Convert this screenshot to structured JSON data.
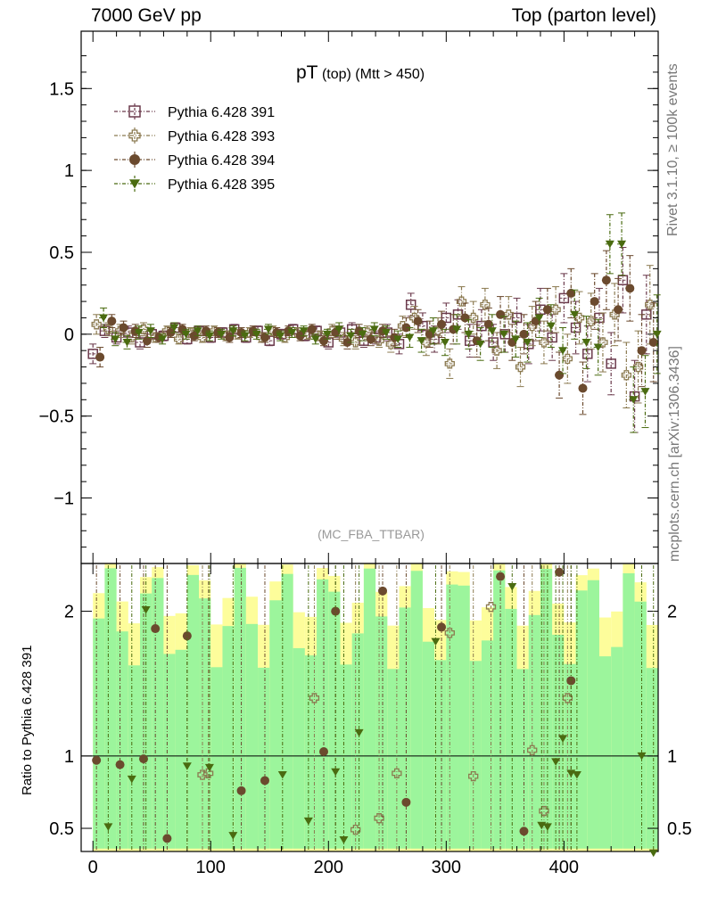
{
  "header": {
    "left": "7000 GeV pp",
    "right": "Top (parton level)"
  },
  "side_labels": {
    "rivet": "Rivet 3.1.10, ≥ 100k events",
    "mcplots": "mcplots.cern.ch [arXiv:1306.3436]"
  },
  "chart_data": [
    {
      "type": "scatter",
      "title_main": "pT",
      "title_small": "(top) (Mtt > 450)",
      "watermark": "(MC_FBA_TTBAR)",
      "xlabel": "",
      "ylabel": "",
      "xlim": [
        -10,
        480
      ],
      "ylim": [
        -1.4,
        1.85
      ],
      "yticks": [
        -1,
        -0.5,
        0,
        0.5,
        1,
        1.5
      ],
      "ytick_labels": [
        "−1",
        "−0.5",
        "0",
        "0.5",
        "1",
        "1.5"
      ],
      "legend_position": "top-left",
      "series": [
        {
          "name": "Pythia 6.428 391",
          "color": "#6b3a4c",
          "marker": "open-square",
          "x": [
            0,
            10,
            20,
            30,
            40,
            50,
            60,
            70,
            80,
            90,
            100,
            110,
            120,
            130,
            140,
            150,
            160,
            170,
            180,
            190,
            200,
            210,
            220,
            230,
            240,
            250,
            260,
            270,
            280,
            290,
            300,
            310,
            320,
            330,
            340,
            350,
            360,
            370,
            380,
            390,
            400,
            410,
            420,
            430,
            440,
            450,
            460,
            470
          ],
          "y": [
            -0.12,
            0.02,
            -0.02,
            0.01,
            -0.05,
            0.0,
            -0.01,
            0.04,
            -0.03,
            0.02,
            -0.02,
            0.01,
            0.03,
            -0.02,
            0.02,
            -0.04,
            0.0,
            0.03,
            -0.01,
            0.02,
            -0.05,
            0.01,
            0.03,
            -0.04,
            -0.02,
            0.01,
            -0.06,
            0.18,
            0.05,
            -0.03,
            0.1,
            0.12,
            -0.04,
            0.05,
            -0.05,
            0.0,
            0.1,
            -0.06,
            0.15,
            -0.02,
            0.22,
            0.04,
            -0.12,
            0.1,
            -0.18,
            0.33,
            -0.38,
            0.12
          ],
          "err": [
            0.06,
            0.04,
            0.04,
            0.04,
            0.04,
            0.03,
            0.03,
            0.03,
            0.03,
            0.03,
            0.03,
            0.03,
            0.03,
            0.03,
            0.03,
            0.03,
            0.03,
            0.03,
            0.03,
            0.03,
            0.04,
            0.04,
            0.04,
            0.04,
            0.04,
            0.05,
            0.06,
            0.07,
            0.08,
            0.08,
            0.09,
            0.09,
            0.1,
            0.1,
            0.11,
            0.11,
            0.12,
            0.12,
            0.13,
            0.14,
            0.15,
            0.16,
            0.17,
            0.18,
            0.19,
            0.2,
            0.22,
            0.24
          ]
        },
        {
          "name": "Pythia 6.428 393",
          "color": "#8b7a50",
          "marker": "open-cross",
          "x": [
            3,
            13,
            23,
            33,
            43,
            53,
            63,
            73,
            83,
            93,
            103,
            113,
            123,
            133,
            143,
            153,
            163,
            173,
            183,
            193,
            203,
            213,
            223,
            233,
            243,
            253,
            263,
            273,
            283,
            293,
            303,
            313,
            323,
            333,
            343,
            353,
            363,
            373,
            383,
            393,
            403,
            413,
            423,
            433,
            443,
            453,
            463,
            473
          ],
          "y": [
            0.06,
            0.03,
            0.02,
            -0.02,
            0.03,
            -0.02,
            0.02,
            -0.03,
            0.01,
            -0.02,
            0.02,
            -0.01,
            0.0,
            0.01,
            -0.02,
            0.02,
            -0.02,
            0.01,
            0.0,
            -0.01,
            0.02,
            -0.03,
            -0.05,
            0.01,
            -0.04,
            -0.06,
            0.05,
            0.1,
            -0.05,
            0.02,
            -0.18,
            0.2,
            0.1,
            0.18,
            -0.1,
            0.12,
            -0.2,
            0.05,
            -0.05,
            0.15,
            -0.15,
            0.1,
            0.08,
            -0.05,
            0.12,
            -0.25,
            -0.2,
            0.18
          ],
          "err": [
            0.06,
            0.04,
            0.04,
            0.04,
            0.04,
            0.03,
            0.03,
            0.03,
            0.03,
            0.03,
            0.03,
            0.03,
            0.03,
            0.03,
            0.03,
            0.03,
            0.03,
            0.03,
            0.03,
            0.03,
            0.04,
            0.04,
            0.04,
            0.04,
            0.04,
            0.05,
            0.06,
            0.07,
            0.08,
            0.08,
            0.09,
            0.09,
            0.1,
            0.1,
            0.11,
            0.11,
            0.12,
            0.12,
            0.13,
            0.14,
            0.15,
            0.16,
            0.17,
            0.18,
            0.19,
            0.2,
            0.22,
            0.24
          ]
        },
        {
          "name": "Pythia 6.428 394",
          "color": "#6b4a2e",
          "marker": "filled-circle",
          "x": [
            6,
            16,
            26,
            36,
            46,
            56,
            66,
            76,
            86,
            96,
            106,
            116,
            126,
            136,
            146,
            156,
            166,
            176,
            186,
            196,
            206,
            216,
            226,
            236,
            246,
            256,
            266,
            276,
            286,
            296,
            306,
            316,
            326,
            336,
            346,
            356,
            366,
            376,
            386,
            396,
            406,
            416,
            426,
            436,
            446,
            456,
            466,
            476
          ],
          "y": [
            -0.14,
            0.08,
            0.04,
            0.02,
            -0.04,
            -0.02,
            0.01,
            0.03,
            -0.01,
            0.02,
            0.01,
            -0.02,
            0.01,
            0.02,
            -0.02,
            0.01,
            0.02,
            -0.01,
            0.03,
            -0.04,
            0.01,
            -0.05,
            0.02,
            -0.03,
            0.02,
            -0.02,
            0.04,
            0.08,
            0.0,
            0.06,
            0.03,
            0.1,
            -0.04,
            0.06,
            0.12,
            -0.05,
            0.0,
            0.08,
            0.15,
            -0.25,
            0.25,
            -0.33,
            0.2,
            0.33,
            0.15,
            0.28,
            -0.1,
            -0.05
          ],
          "err": [
            0.06,
            0.04,
            0.04,
            0.04,
            0.04,
            0.03,
            0.03,
            0.03,
            0.03,
            0.03,
            0.03,
            0.03,
            0.03,
            0.03,
            0.03,
            0.03,
            0.03,
            0.03,
            0.03,
            0.03,
            0.04,
            0.04,
            0.04,
            0.04,
            0.04,
            0.05,
            0.06,
            0.07,
            0.08,
            0.08,
            0.09,
            0.09,
            0.1,
            0.1,
            0.11,
            0.11,
            0.12,
            0.12,
            0.13,
            0.14,
            0.15,
            0.16,
            0.17,
            0.18,
            0.19,
            0.2,
            0.22,
            0.24
          ]
        },
        {
          "name": "Pythia 6.428 395",
          "color": "#4a6b10",
          "marker": "filled-triangle-down",
          "x": [
            9,
            19,
            29,
            39,
            49,
            59,
            69,
            79,
            89,
            99,
            109,
            119,
            129,
            139,
            149,
            159,
            169,
            179,
            189,
            199,
            209,
            219,
            229,
            239,
            249,
            259,
            269,
            279,
            289,
            299,
            309,
            319,
            329,
            339,
            349,
            359,
            369,
            379,
            389,
            399,
            409,
            419,
            429,
            439,
            449,
            459,
            469,
            479
          ],
          "y": [
            0.1,
            -0.03,
            -0.05,
            0.01,
            0.02,
            -0.03,
            0.04,
            0.0,
            0.02,
            -0.01,
            0.0,
            0.02,
            -0.01,
            0.0,
            0.03,
            -0.01,
            0.01,
            0.02,
            -0.03,
            0.0,
            0.03,
            -0.01,
            0.0,
            0.03,
            0.01,
            -0.03,
            -0.02,
            -0.04,
            0.02,
            -0.05,
            0.03,
            0.0,
            -0.06,
            0.02,
            0.0,
            -0.03,
            -0.05,
            0.1,
            0.05,
            -0.1,
            0.12,
            -0.05,
            -0.08,
            0.55,
            0.55,
            -0.4,
            -0.35,
            0.0
          ],
          "err": [
            0.06,
            0.04,
            0.04,
            0.04,
            0.04,
            0.03,
            0.03,
            0.03,
            0.03,
            0.03,
            0.03,
            0.03,
            0.03,
            0.03,
            0.03,
            0.03,
            0.03,
            0.03,
            0.03,
            0.03,
            0.04,
            0.04,
            0.04,
            0.04,
            0.04,
            0.05,
            0.06,
            0.07,
            0.08,
            0.08,
            0.09,
            0.09,
            0.1,
            0.1,
            0.11,
            0.11,
            0.12,
            0.12,
            0.13,
            0.14,
            0.15,
            0.16,
            0.17,
            0.18,
            0.19,
            0.2,
            0.22,
            0.24
          ]
        }
      ]
    },
    {
      "type": "scatter",
      "ylabel": "Ratio to Pythia 6.428 391",
      "xlim": [
        -10,
        480
      ],
      "ylim": [
        0.34,
        2.33
      ],
      "xticks": [
        0,
        100,
        200,
        300,
        400
      ],
      "yticks": [
        0.5,
        1,
        2
      ],
      "ytick_labels": [
        "0.5",
        "1",
        "2"
      ],
      "band_colors": {
        "inner": "#9cf59c",
        "outer": "#fdfd9b"
      },
      "series": [
        {
          "name": "Pythia 6.428 393",
          "color": "#8b7a50",
          "marker": "open-cross",
          "x": [
            93,
            98,
            188,
            223,
            243,
            258,
            303,
            323,
            338,
            373,
            383,
            403
          ],
          "y": [
            0.87,
            0.88,
            1.4,
            0.49,
            0.57,
            0.88,
            1.85,
            0.86,
            2.03,
            1.04,
            0.62,
            1.4
          ]
        },
        {
          "name": "Pythia 6.428 394",
          "color": "#6b4a2e",
          "marker": "filled-circle",
          "x": [
            3,
            23,
            43,
            53,
            63,
            80,
            126,
            146,
            196,
            206,
            246,
            266,
            296,
            346,
            366,
            396,
            406
          ],
          "y": [
            0.97,
            0.94,
            0.98,
            1.88,
            0.43,
            1.83,
            0.76,
            0.83,
            1.03,
            2.0,
            2.14,
            0.68,
            1.89,
            2.24,
            0.48,
            2.27,
            1.52
          ]
        },
        {
          "name": "Pythia 6.428 395",
          "color": "#4a6b10",
          "marker": "filled-triangle-down",
          "x": [
            13,
            33,
            45,
            80,
            99,
            119,
            161,
            183,
            206,
            213,
            226,
            291,
            356,
            381,
            386,
            393,
            399,
            406,
            411,
            466,
            476
          ],
          "y": [
            0.51,
            0.84,
            2.01,
            0.93,
            0.92,
            0.45,
            0.87,
            0.55,
            0.89,
            0.42,
            1.16,
            1.79,
            2.17,
            0.52,
            0.51,
            0.96,
            1.12,
            0.88,
            0.87,
            1.0,
            0.33
          ]
        },
        {
          "name": "Pythia 6.428 391",
          "color": "#6b3a4c",
          "marker": "none",
          "x": [],
          "y": []
        }
      ]
    }
  ]
}
